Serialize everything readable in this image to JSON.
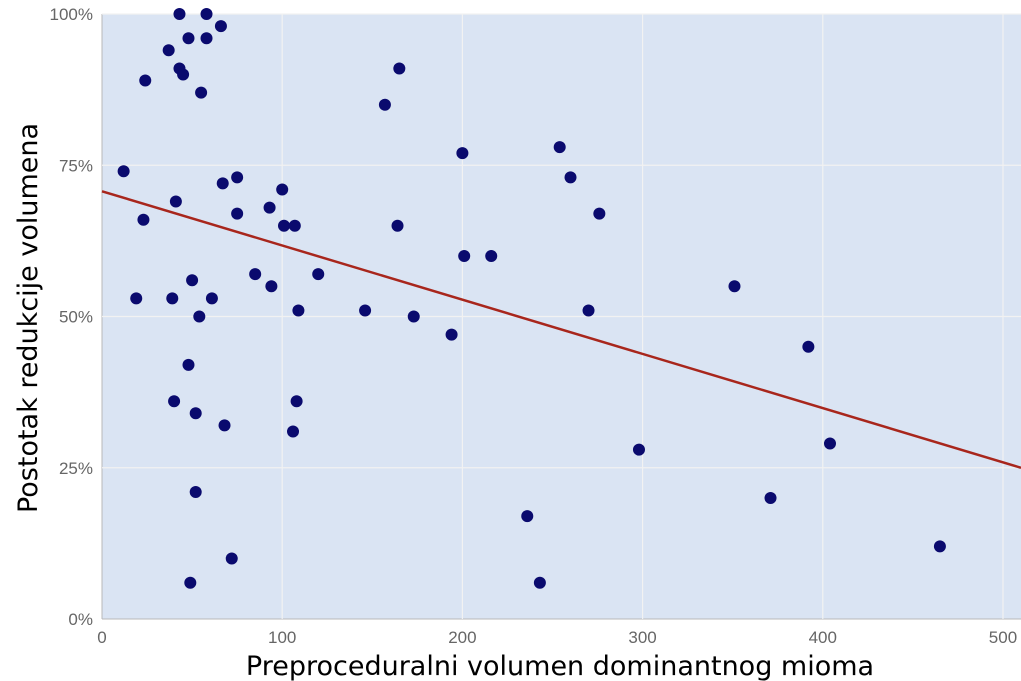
{
  "chart_data": {
    "type": "scatter",
    "title": "",
    "xlabel": "Preproceduralni volumen dominantnog mioma",
    "ylabel": "Postotak redukcije volumena",
    "xlim": [
      0,
      510
    ],
    "ylim": [
      0,
      100
    ],
    "x_ticks": [
      0,
      100,
      200,
      300,
      400,
      500
    ],
    "y_ticks": [
      0,
      25,
      50,
      75,
      100
    ],
    "x_tick_labels": [
      "0",
      "100",
      "200",
      "300",
      "400",
      "500"
    ],
    "y_tick_labels": [
      "0%",
      "25%",
      "50%",
      "75%",
      "100%"
    ],
    "grid": true,
    "colors": {
      "plot_background": "#dae4f3",
      "grid": "#f2f2f2",
      "points": "#0a0a6e",
      "trend_line": "#a8261c"
    },
    "series": [
      {
        "points": [
          [
            12,
            74
          ],
          [
            19,
            53
          ],
          [
            23,
            66
          ],
          [
            24,
            89
          ],
          [
            37,
            94
          ],
          [
            39,
            53
          ],
          [
            40,
            36
          ],
          [
            41,
            69
          ],
          [
            43,
            100
          ],
          [
            43,
            91
          ],
          [
            45,
            90
          ],
          [
            48,
            96
          ],
          [
            48,
            42
          ],
          [
            49,
            6
          ],
          [
            50,
            56
          ],
          [
            52,
            34
          ],
          [
            52,
            21
          ],
          [
            54,
            50
          ],
          [
            55,
            87
          ],
          [
            58,
            100
          ],
          [
            58,
            96
          ],
          [
            61,
            53
          ],
          [
            66,
            98
          ],
          [
            67,
            72
          ],
          [
            68,
            32
          ],
          [
            72,
            10
          ],
          [
            75,
            73
          ],
          [
            75,
            67
          ],
          [
            85,
            57
          ],
          [
            93,
            68
          ],
          [
            94,
            55
          ],
          [
            100,
            71
          ],
          [
            101,
            65
          ],
          [
            106,
            31
          ],
          [
            107,
            65
          ],
          [
            108,
            36
          ],
          [
            109,
            51
          ],
          [
            120,
            57
          ],
          [
            146,
            51
          ],
          [
            157,
            85
          ],
          [
            164,
            65
          ],
          [
            165,
            91
          ],
          [
            173,
            50
          ],
          [
            194,
            47
          ],
          [
            200,
            77
          ],
          [
            201,
            60
          ],
          [
            216,
            60
          ],
          [
            236,
            17
          ],
          [
            243,
            6
          ],
          [
            254,
            78
          ],
          [
            260,
            73
          ],
          [
            270,
            51
          ],
          [
            276,
            67
          ],
          [
            298,
            28
          ],
          [
            351,
            55
          ],
          [
            371,
            20
          ],
          [
            392,
            45
          ],
          [
            404,
            29
          ],
          [
            465,
            12
          ]
        ]
      }
    ],
    "trend_line": {
      "x": [
        0,
        510
      ],
      "y": [
        70.7,
        25
      ]
    }
  }
}
